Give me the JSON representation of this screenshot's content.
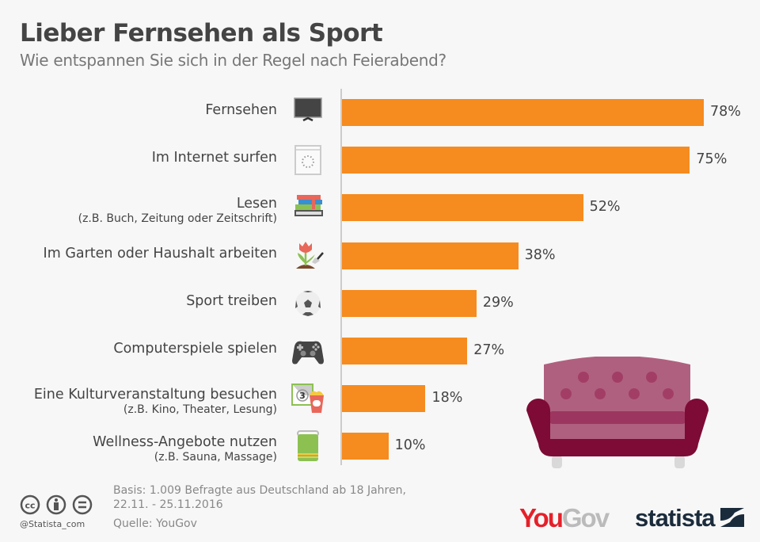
{
  "header": {
    "title": "Lieber Fernsehen als Sport",
    "subtitle": "Wie entspannen Sie sich in der Regel nach Feierabend?"
  },
  "chart_data": {
    "type": "bar",
    "orientation": "horizontal",
    "title": "Lieber Fernsehen als Sport",
    "subtitle": "Wie entspannen Sie sich in der Regel nach Feierabend?",
    "unit": "%",
    "xlim": [
      0,
      100
    ],
    "grid": false,
    "bar_color": "#f68b1f",
    "categories": [
      {
        "label": "Fernsehen",
        "sub": "",
        "icon": "tv-icon"
      },
      {
        "label": "Im Internet surfen",
        "sub": "",
        "icon": "browser-loading-icon"
      },
      {
        "label": "Lesen",
        "sub": "(z.B. Buch, Zeitung oder Zeitschrift)",
        "icon": "books-icon"
      },
      {
        "label": "Im Garten oder Haushalt arbeiten",
        "sub": "",
        "icon": "tulip-trowel-icon"
      },
      {
        "label": "Sport treiben",
        "sub": "",
        "icon": "soccer-ball-icon"
      },
      {
        "label": "Computerspiele spielen",
        "sub": "",
        "icon": "gamepad-icon"
      },
      {
        "label": "Eine Kulturveranstaltung besuchen",
        "sub": "(z.B. Kino, Theater, Lesung)",
        "icon": "film-popcorn-icon"
      },
      {
        "label": "Wellness-Angebote nutzen",
        "sub": "(z.B. Sauna, Massage)",
        "icon": "towel-icon"
      }
    ],
    "values": [
      78,
      75,
      52,
      38,
      29,
      27,
      18,
      10
    ],
    "value_labels": [
      "78%",
      "75%",
      "52%",
      "38%",
      "29%",
      "27%",
      "18%",
      "10%"
    ]
  },
  "footer": {
    "basis_line1": "Basis: 1.009 Befragte aus Deutschland ab 18 Jahren,",
    "basis_line2": "22.11. - 25.11.2016",
    "source": "Quelle: YouGov",
    "handle": "@Statista_com",
    "license_icons": [
      "cc-icon",
      "attribution-icon",
      "no-derivatives-icon"
    ],
    "logo_yougov_you": "You",
    "logo_yougov_gov": "Gov",
    "logo_statista": "statista"
  },
  "colors": {
    "bar": "#f68b1f",
    "sofa_main": "#b0607f",
    "sofa_dark": "#7d0b35",
    "yougov_red": "#e5202a",
    "statista_navy": "#1a2b3c"
  }
}
